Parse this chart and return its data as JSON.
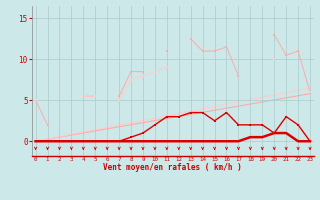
{
  "x": [
    0,
    1,
    2,
    3,
    4,
    5,
    6,
    7,
    8,
    9,
    10,
    11,
    12,
    13,
    14,
    15,
    16,
    17,
    18,
    19,
    20,
    21,
    22,
    23
  ],
  "line_rafales_data": [
    5.0,
    2.0,
    null,
    null,
    5.5,
    5.5,
    null,
    5.5,
    8.5,
    8.5,
    null,
    11.0,
    null,
    12.5,
    11.0,
    11.0,
    11.5,
    8.0,
    null,
    null,
    13.0,
    10.5,
    11.0,
    6.0
  ],
  "line_moyen_data": [
    5.0,
    null,
    null,
    null,
    5.5,
    5.5,
    null,
    5.0,
    7.5,
    8.0,
    8.5,
    9.0,
    null,
    null,
    null,
    null,
    null,
    null,
    null,
    null,
    10.0,
    null,
    null,
    6.0
  ],
  "line_rafales_low": [
    0.0,
    0.0,
    0.0,
    0.0,
    0.0,
    0.0,
    0.0,
    0.0,
    0.5,
    1.0,
    2.0,
    3.0,
    3.0,
    3.5,
    3.5,
    2.5,
    3.5,
    2.0,
    2.0,
    2.0,
    1.0,
    3.0,
    2.0,
    0.0
  ],
  "line_moyen_low": [
    0.0,
    0.0,
    0.0,
    0.0,
    0.0,
    0.0,
    0.0,
    0.0,
    0.0,
    0.0,
    0.0,
    0.0,
    0.0,
    0.0,
    0.0,
    0.0,
    0.0,
    0.0,
    0.5,
    0.5,
    1.0,
    1.0,
    0.0,
    0.0
  ],
  "trend1": [
    0.0,
    5.8
  ],
  "trend2": [
    0.0,
    6.5
  ],
  "trend_x": [
    0,
    23
  ],
  "bg_color": "#cce8e8",
  "grid_color": "#aacccc",
  "color_light1": "#ffaaaa",
  "color_light2": "#ffcccc",
  "color_dark": "#dd0000",
  "color_trend1": "#ffaaaa",
  "color_trend2": "#ffcccc",
  "xlabel": "Vent moyen/en rafales ( km/h )",
  "yticks": [
    0,
    5,
    10,
    15
  ],
  "xlim": [
    -0.3,
    23.3
  ],
  "ylim": [
    -1.8,
    16.5
  ]
}
